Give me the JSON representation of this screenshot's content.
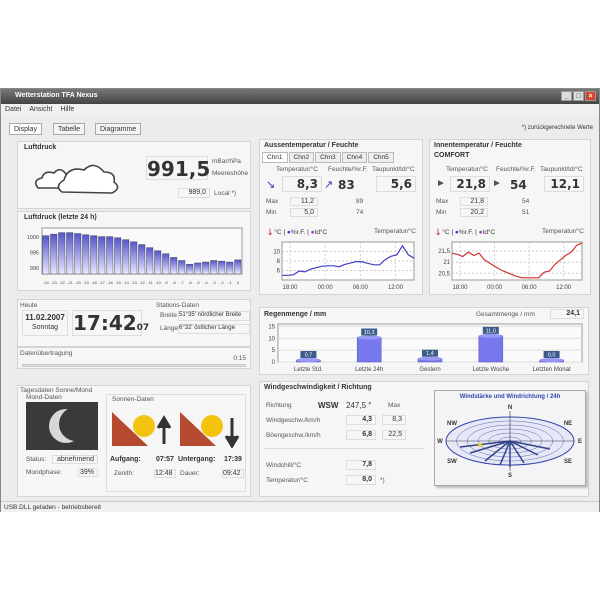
{
  "window": {
    "title": "Wetterstation TFA Nexus",
    "buttons": [
      "_",
      "□",
      "×"
    ]
  },
  "menu": [
    "Datei",
    "Ansicht",
    "Hilfe"
  ],
  "tabs": [
    "Display",
    "Tabelle",
    "Diagramme"
  ],
  "note": "*) zurückgerechnete Werte",
  "luftdruck": {
    "title": "Luftdruck",
    "value": "991,5",
    "unit": "mBar/hPa",
    "altitude_label": "Meereshöhe",
    "local_value": "989,0",
    "local_label": "Local  *)",
    "icon": "cloud-icon"
  },
  "pressure_chart": {
    "title": "Luftdruck (letzte 24 h)"
  },
  "heute": {
    "label": "Heute",
    "date": "11.02.2007",
    "weekday": "Sonntag",
    "time": "17:42",
    "seconds": "07"
  },
  "station": {
    "label": "Stations-Daten",
    "breite_label": "Breite",
    "breite": "51°35' nördlicher Breite",
    "laenge_label": "Länge",
    "laenge": "6°32' östlicher Länge"
  },
  "transfer": {
    "label": "Datenübertragung",
    "value": "0:15",
    "progress": 0
  },
  "sunmoon": {
    "title": "Tagesdaten Sonne/Mond",
    "moon_title": "Mond-Daten",
    "status_label": "Status:",
    "status": "abnehmend",
    "phase_label": "Mondphase:",
    "phase": "39%",
    "sun_title": "Sonnen-Daten",
    "rise_label": "Aufgang:",
    "rise": "07:57",
    "set_label": "Untergang:",
    "set": "17:39",
    "zenith_label": "Zenith:",
    "zenith": "12:48",
    "duration_label": "Dauer:",
    "duration": "09:42"
  },
  "aussen": {
    "title": "Aussentemperatur / Feuchte",
    "channels": [
      "Chn1",
      "Chn2",
      "Chn3",
      "Chn4",
      "Chn5"
    ],
    "temp_label": "Temperatur/°C",
    "hum_label": "Feuchte/%r.F.",
    "dew_label": "Taupunkt/td/°C",
    "temp": "8,3",
    "hum": "83",
    "dew": "5,6",
    "max_label": "Max",
    "min_label": "Min",
    "temp_max": "11,2",
    "temp_min": "5,0",
    "hum_max": "89",
    "hum_min": "74",
    "chart_tabs": [
      "°C",
      "%r.F.",
      "td°C"
    ],
    "chart_label": "Temperatur/°C"
  },
  "innen": {
    "title": "Innentemperatur / Feuchte",
    "comfort": "COMFORT",
    "temp_label": "Temperatur/°C",
    "hum_label": "Feuchte/%r.F.",
    "dew_label": "Taupunkt/td/°C",
    "temp": "21,8",
    "hum": "54",
    "dew": "12,1",
    "max_label": "Max",
    "min_label": "Min",
    "temp_max": "21,8",
    "temp_min": "20,2",
    "hum_max": "54",
    "hum_min": "51",
    "chart_tabs": [
      "°C",
      "%r.F.",
      "td°C"
    ],
    "chart_label": "Temperatur/°C"
  },
  "rain": {
    "title": "Regenmenge / mm",
    "total_label": "Gesamtmenge / mm",
    "total": "24,1"
  },
  "wind": {
    "title": "Windgeschwindigkeit / Richtung",
    "dir_label": "Richtung",
    "dir": "WSW",
    "deg": "247,5 °",
    "max_label": "Max",
    "speed_label": "Windgeschw./km/h",
    "speed": "4,3",
    "speed_max": "8,3",
    "gust_label": "Böengeschw./km/h",
    "gust": "6,8",
    "gust_max": "22,5",
    "chill_label": "Windchill/°C",
    "chill": "7,8",
    "temp_label": "Temperatur/°C",
    "temp": "8,0",
    "temp_note": "*)",
    "rose_title": "Windstärke und Windrichtung / 24h",
    "rose_dirs": [
      "N",
      "NE",
      "E",
      "SE",
      "S",
      "SW",
      "W",
      "NW"
    ]
  },
  "statusbar": "USB.DLL geladen - betriebsbereit",
  "chart_data": [
    {
      "type": "bar",
      "title": "Luftdruck (letzte 24 h)",
      "categories": [
        "-24",
        "-23",
        "-22",
        "-21",
        "-20",
        "-19",
        "-18",
        "-17",
        "-16",
        "-15",
        "-14",
        "-13",
        "-12",
        "-11",
        "-10",
        "-9",
        "-8",
        "-7",
        "-6",
        "-5",
        "-4",
        "-3",
        "-2",
        "-1",
        "0"
      ],
      "values": [
        1000.5,
        1001,
        1001.5,
        1001.5,
        1001.2,
        1000.8,
        1000.5,
        1000.2,
        1000.2,
        999.8,
        999.2,
        998.5,
        997.6,
        996.6,
        995.6,
        994.6,
        993.4,
        992.4,
        991.2,
        991.6,
        991.9,
        992.4,
        992.2,
        991.9,
        992.6
      ],
      "yticks": [
        990,
        995,
        1000
      ],
      "ylim": [
        988,
        1003
      ]
    },
    {
      "type": "line",
      "title": "Temperatur/°C",
      "series": [
        {
          "values": [
            5.0,
            5.0,
            5.1,
            5.9,
            5.7,
            6.3,
            6.6,
            6.9,
            7.0,
            7.0,
            6.8,
            7.3,
            7.6,
            7.9,
            7.8,
            7.5,
            7.2,
            7.2,
            8.3,
            9.0,
            9.3,
            11.2,
            9.3,
            8.6
          ]
        }
      ],
      "xticks": [
        "18:00",
        "00:00",
        "06:00",
        "12:00"
      ],
      "yticks": [
        6,
        8,
        10
      ],
      "ylim": [
        4,
        12
      ],
      "color": "#4040c0"
    },
    {
      "type": "line",
      "title": "Temperatur/°C",
      "series": [
        {
          "values": [
            21.4,
            21.35,
            21.25,
            21.45,
            21.3,
            21.4,
            21.1,
            20.95,
            20.8,
            20.65,
            20.55,
            20.45,
            20.35,
            20.3,
            20.3,
            20.3,
            20.3,
            20.55,
            20.6,
            20.9,
            21.1,
            21.3,
            21.45,
            21.75,
            21.85
          ]
        }
      ],
      "xticks": [
        "18:00",
        "00:00",
        "06:00",
        "12:00"
      ],
      "yticks": [
        20.5,
        21,
        21.5
      ],
      "ylim": [
        20.2,
        21.9
      ],
      "color": "#d03030"
    },
    {
      "type": "bar",
      "title": "Regenmenge / mm",
      "categories": [
        "Letzte Std.",
        "Letzte 24h",
        "Gestern",
        "Letzte Woche",
        "Letzten Monat"
      ],
      "values": [
        0.7,
        10.3,
        1.4,
        11.0,
        0.0
      ],
      "labels": [
        "0,7",
        "10,3",
        "1,4",
        "11,0",
        "0,0"
      ],
      "yticks": [
        0,
        5,
        10,
        15
      ],
      "ylim": [
        0,
        16
      ]
    }
  ]
}
